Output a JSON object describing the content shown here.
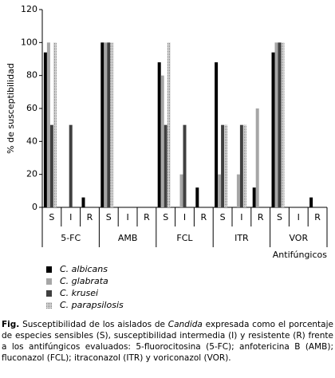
{
  "chart_data": {
    "type": "bar",
    "ylabel": "% de susceptibilidad",
    "xlabel": "Antifúngicos",
    "categories": [
      "S",
      "I",
      "R",
      "S",
      "I",
      "R",
      "S",
      "I",
      "R",
      "S",
      "I",
      "R",
      "S",
      "I",
      "R"
    ],
    "groups": [
      "5-FC",
      "AMB",
      "FCL",
      "ITR",
      "VOR"
    ],
    "series": [
      {
        "name": "C. albicans",
        "color": "#000000",
        "values": [
          94,
          0,
          6,
          100,
          0,
          0,
          88,
          0,
          12,
          88,
          0,
          12,
          94,
          0,
          6
        ]
      },
      {
        "name": "C. glabrata",
        "color": "#a6a6a6",
        "values": [
          100,
          0,
          0,
          100,
          0,
          0,
          80,
          20,
          0,
          20,
          20,
          60,
          100,
          0,
          0
        ]
      },
      {
        "name": "C. krusei",
        "color": "#404040",
        "values": [
          50,
          50,
          0,
          100,
          0,
          0,
          50,
          50,
          0,
          50,
          50,
          0,
          100,
          0,
          0
        ]
      },
      {
        "name": "C. parapsilosis",
        "color": "#8c8c8c",
        "pattern": "dots",
        "values": [
          100,
          0,
          0,
          100,
          0,
          0,
          100,
          0,
          0,
          50,
          50,
          0,
          100,
          0,
          0
        ]
      }
    ],
    "ylim": [
      0,
      120
    ],
    "yticks": [
      0,
      20,
      40,
      60,
      80,
      100,
      120
    ]
  },
  "caption": [
    "Fig.",
    " Susceptibilidad de los aislados de ",
    "Candida",
    " expresada como el porcentaje de especies sensibles (S), susceptibilidad intermedia (I) y resistente (R) frente a los antifúngicos evaluados: 5-fluorocitosina (5-FC); anfotericina B (AMB); fluconazol  (FCL); itraconazol (ITR) y voriconazol (VOR)."
  ]
}
